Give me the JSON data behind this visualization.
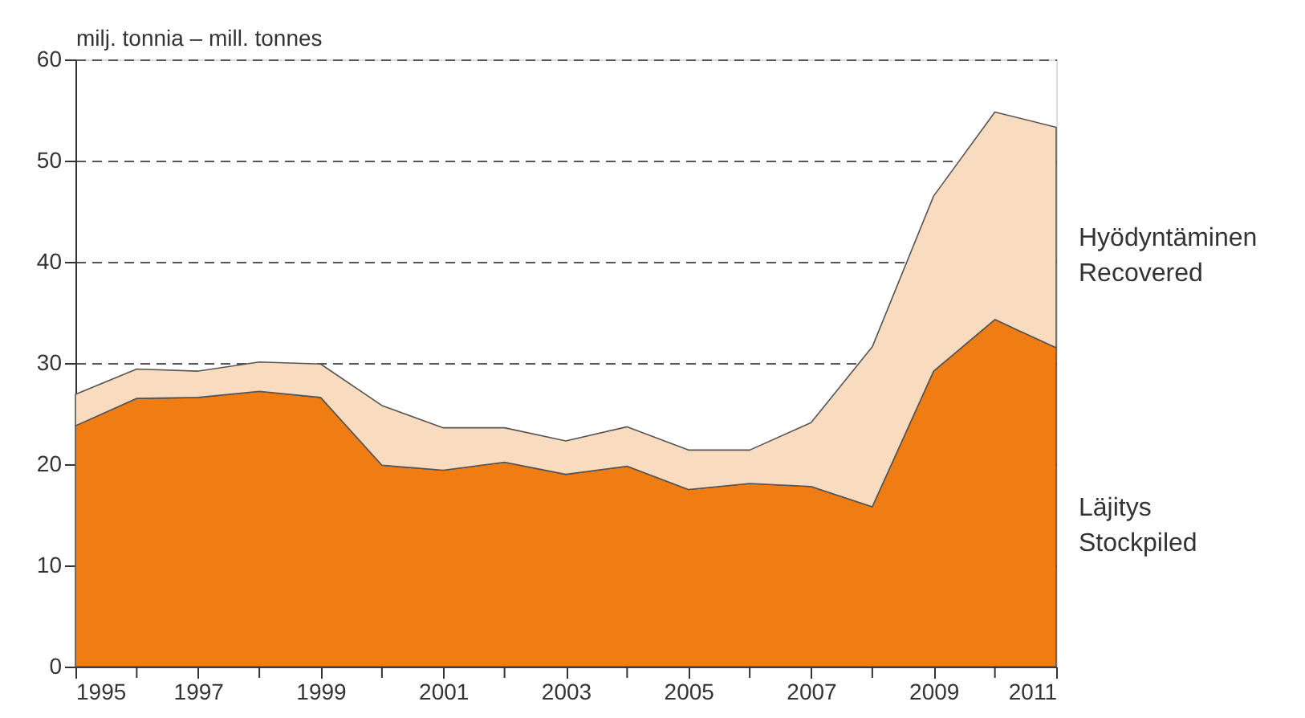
{
  "chart_data": {
    "type": "area",
    "stacked": true,
    "ylabel": "milj. tonnia – mill. tonnes",
    "x": [
      1995,
      1996,
      1997,
      1998,
      1999,
      2000,
      2001,
      2002,
      2003,
      2004,
      2005,
      2006,
      2007,
      2008,
      2009,
      2010,
      2011
    ],
    "series": [
      {
        "name": "Läjitys\nStockpiled",
        "color": "#f07c14",
        "values": [
          23.8,
          26.5,
          26.6,
          27.2,
          26.6,
          19.9,
          19.4,
          20.2,
          19.0,
          19.8,
          17.5,
          18.1,
          17.8,
          15.8,
          29.2,
          34.3,
          31.5
        ]
      },
      {
        "name": "Hyödyntäminen\nRecovered",
        "color": "#f9dcc0",
        "values": [
          3.1,
          2.9,
          2.6,
          2.9,
          3.3,
          5.9,
          4.2,
          3.4,
          3.3,
          3.9,
          3.9,
          3.3,
          6.3,
          15.8,
          17.3,
          20.5,
          21.8
        ]
      }
    ],
    "xlim": [
      1995,
      2011
    ],
    "xticks": [
      1995,
      {
        "value": 1996,
        "label": null
      },
      1997,
      {
        "value": 1998,
        "label": null
      },
      1999,
      {
        "value": 2000,
        "label": null
      },
      2001,
      {
        "value": 2002,
        "label": null
      },
      2003,
      {
        "value": 2004,
        "label": null
      },
      2005,
      {
        "value": 2006,
        "label": null
      },
      2007,
      {
        "value": 2008,
        "label": null
      },
      2009,
      {
        "value": 2010,
        "label": null
      },
      2011
    ],
    "ylim": [
      0,
      60
    ],
    "yticks": [
      0,
      10,
      20,
      30,
      40,
      50,
      60
    ],
    "grid": "y",
    "legend": "right"
  }
}
